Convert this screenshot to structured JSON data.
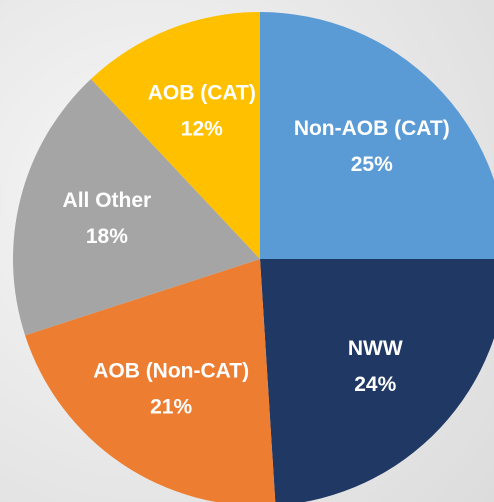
{
  "chart_data": {
    "type": "pie",
    "categories": [
      "Non-AOB (CAT)",
      "NWW",
      "AOB (Non-CAT)",
      "All Other",
      "AOB (CAT)"
    ],
    "values": [
      25,
      24,
      21,
      18,
      12
    ],
    "value_labels": [
      "25%",
      "24%",
      "21%",
      "18%",
      "12%"
    ],
    "colors": [
      "#5b9bd5",
      "#203864",
      "#ed7d31",
      "#a5a5a5",
      "#ffc000"
    ]
  }
}
